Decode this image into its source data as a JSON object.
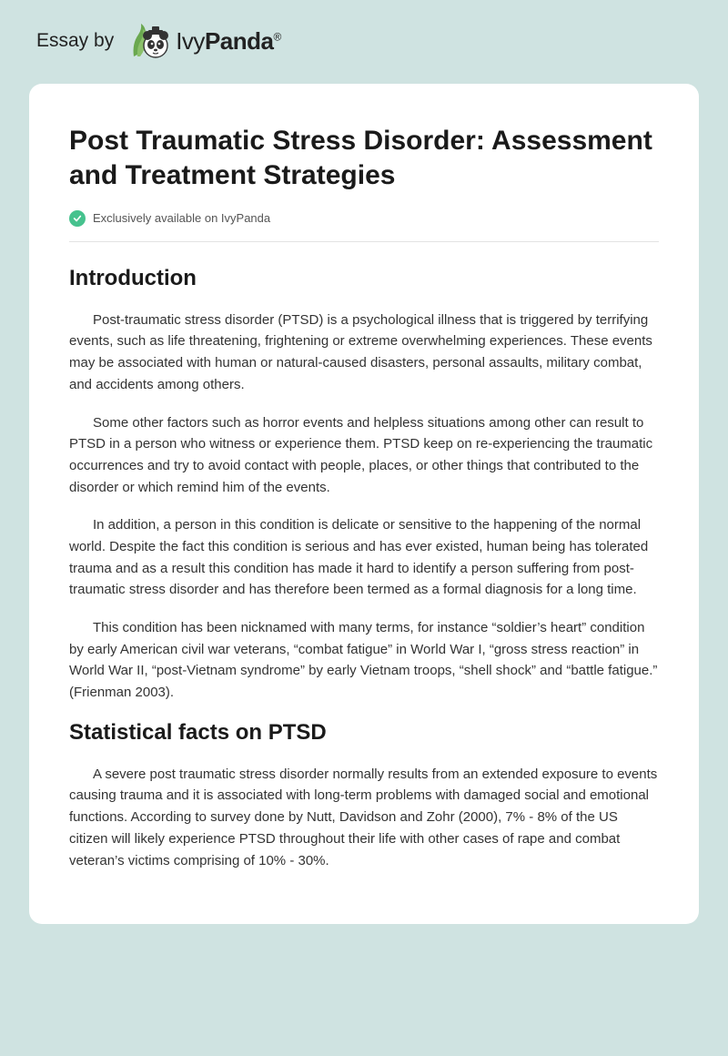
{
  "colors": {
    "page_bg": "#cfe3e1",
    "card_bg": "#ffffff",
    "heading": "#1a1a1a",
    "body": "#333333",
    "badge_text": "#555555",
    "divider": "#e3e3e3",
    "accent_green": "#46c28e",
    "leaf_green": "#6aa84f"
  },
  "header": {
    "essay_by": "Essay by",
    "brand_a": "Ivy",
    "brand_b": "Panda",
    "reg": "®"
  },
  "doc": {
    "title": "Post Traumatic Stress Disorder: Assessment and Treatment Strategies",
    "badge": "Exclusively available on IvyPanda",
    "sections": [
      {
        "heading": "Introduction",
        "paragraphs": [
          "Post-traumatic stress disorder (PTSD) is a psychological illness that is triggered by terrifying events, such as life threatening, frightening or extreme overwhelming experiences. These events may be associated with human or natural-caused disasters, personal assaults, military combat, and accidents among others.",
          "Some other factors such as horror events and helpless situations among other can result to PTSD in a person who witness or experience them. PTSD keep on re-experiencing the traumatic occurrences and try to avoid contact with people, places, or other things that contributed to the disorder or which remind him of the events.",
          "In addition, a person in this condition is delicate or sensitive to the happening of the normal world. Despite the fact this condition is serious and has ever existed, human being has tolerated trauma and as a result this condition has made it hard to identify a person suffering from post-traumatic stress disorder and has therefore been termed as a formal diagnosis for a long time.",
          "This condition has been nicknamed with many terms, for instance “soldier’s heart” condition by early American civil war veterans, “combat fatigue” in World War I, “gross stress reaction” in World War II, “post-Vietnam syndrome” by early Vietnam troops, “shell shock” and “battle fatigue.” (Frienman 2003)."
        ]
      },
      {
        "heading": "Statistical facts on PTSD",
        "paragraphs": [
          "A severe post traumatic stress disorder normally results from an extended exposure to events causing trauma and it is associated with long-term problems with damaged social and emotional functions. According to survey done by Nutt, Davidson and Zohr (2000), 7% - 8% of the US citizen will likely experience PTSD throughout their life with other cases of rape and combat veteran’s victims comprising of 10% - 30%."
        ]
      }
    ]
  }
}
